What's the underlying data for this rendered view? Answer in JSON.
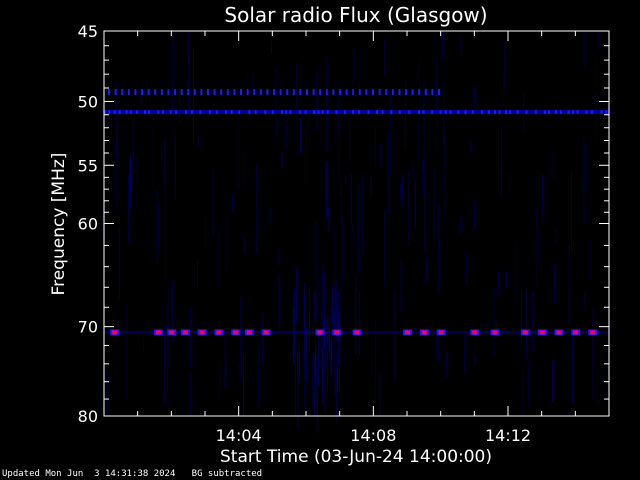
{
  "chart_data": {
    "type": "heatmap",
    "title": "Solar radio Flux (Glasgow)",
    "xlabel": "Start Time (03-Jun-24 14:00:00)",
    "ylabel": "Frequency [MHz]",
    "x_unit": "minutes after 14:00",
    "xlim": [
      0,
      15
    ],
    "ylim": [
      45,
      80
    ],
    "y_scale": "log",
    "x_ticks": [
      {
        "value": 4,
        "label": "14:04"
      },
      {
        "value": 8,
        "label": "14:08"
      },
      {
        "value": 12,
        "label": "14:12"
      }
    ],
    "y_ticks": [
      {
        "value": 45,
        "label": "45"
      },
      {
        "value": 50,
        "label": "50"
      },
      {
        "value": 55,
        "label": "55"
      },
      {
        "value": 60,
        "label": "60"
      },
      {
        "value": 70,
        "label": "70"
      },
      {
        "value": 80,
        "label": "80"
      }
    ],
    "bands": [
      {
        "frequency_mhz": 49.3,
        "intensity": "medium",
        "pattern": "dashed",
        "x_range": [
          0,
          10
        ]
      },
      {
        "frequency_mhz": 50.8,
        "intensity": "medium",
        "pattern": "continuous",
        "x_range": [
          0,
          15
        ]
      },
      {
        "frequency_mhz": 70.6,
        "intensity": "high",
        "pattern": "intermittent",
        "x_range": [
          0,
          15
        ]
      }
    ],
    "colors": {
      "background": "#000000",
      "low": "#00008b",
      "medium": "#1a1aff",
      "high": "#ff0044",
      "axes": "#ffffff"
    }
  },
  "footer": {
    "updated": "Updated Mon Jun  3 14:31:38 2024",
    "status": "BG subtracted"
  }
}
